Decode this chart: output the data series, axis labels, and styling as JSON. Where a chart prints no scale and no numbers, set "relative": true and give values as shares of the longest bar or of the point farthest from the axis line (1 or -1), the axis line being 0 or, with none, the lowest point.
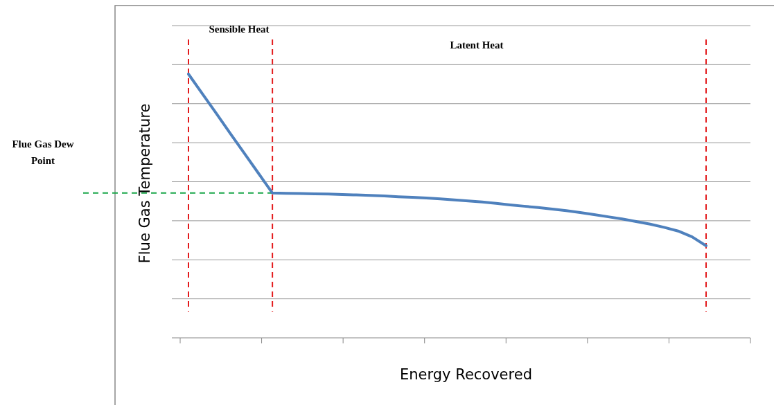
{
  "chart_data": {
    "type": "line",
    "relative": true,
    "xlabel": "Energy Recovered",
    "ylabel": "Flue Gas Temperature",
    "annotations": [
      "Sensible Heat",
      "Latent Heat"
    ],
    "categories": [
      null,
      null,
      null,
      null,
      null,
      null,
      null,
      null,
      null,
      null,
      null,
      null,
      null,
      null,
      null,
      null,
      null,
      null,
      null,
      null,
      null,
      null,
      null,
      null,
      null,
      null,
      null,
      null,
      null,
      null,
      null,
      null,
      null,
      null,
      null,
      null,
      null,
      null
    ],
    "series": [
      {
        "color": "#4f81bd",
        "values": [
          1.0,
          0.925,
          0.85,
          0.774,
          0.699,
          0.624,
          0.549,
          0.548,
          0.547,
          0.546,
          0.545,
          0.543,
          0.542,
          0.54,
          0.538,
          0.535,
          0.533,
          0.53,
          0.527,
          0.523,
          0.519,
          0.515,
          0.51,
          0.504,
          0.499,
          0.494,
          0.488,
          0.482,
          0.475,
          0.467,
          0.459,
          0.451,
          0.441,
          0.431,
          0.419,
          0.405,
          0.383,
          0.349
        ]
      }
    ],
    "ref_lines": [
      {
        "axis": "y",
        "value": 0.549,
        "label": "Flue Gas Dew Point",
        "color": "#1aa64a",
        "line_style": "dashed"
      }
    ],
    "grid": true,
    "marker": "none",
    "line_style": "solid"
  }
}
